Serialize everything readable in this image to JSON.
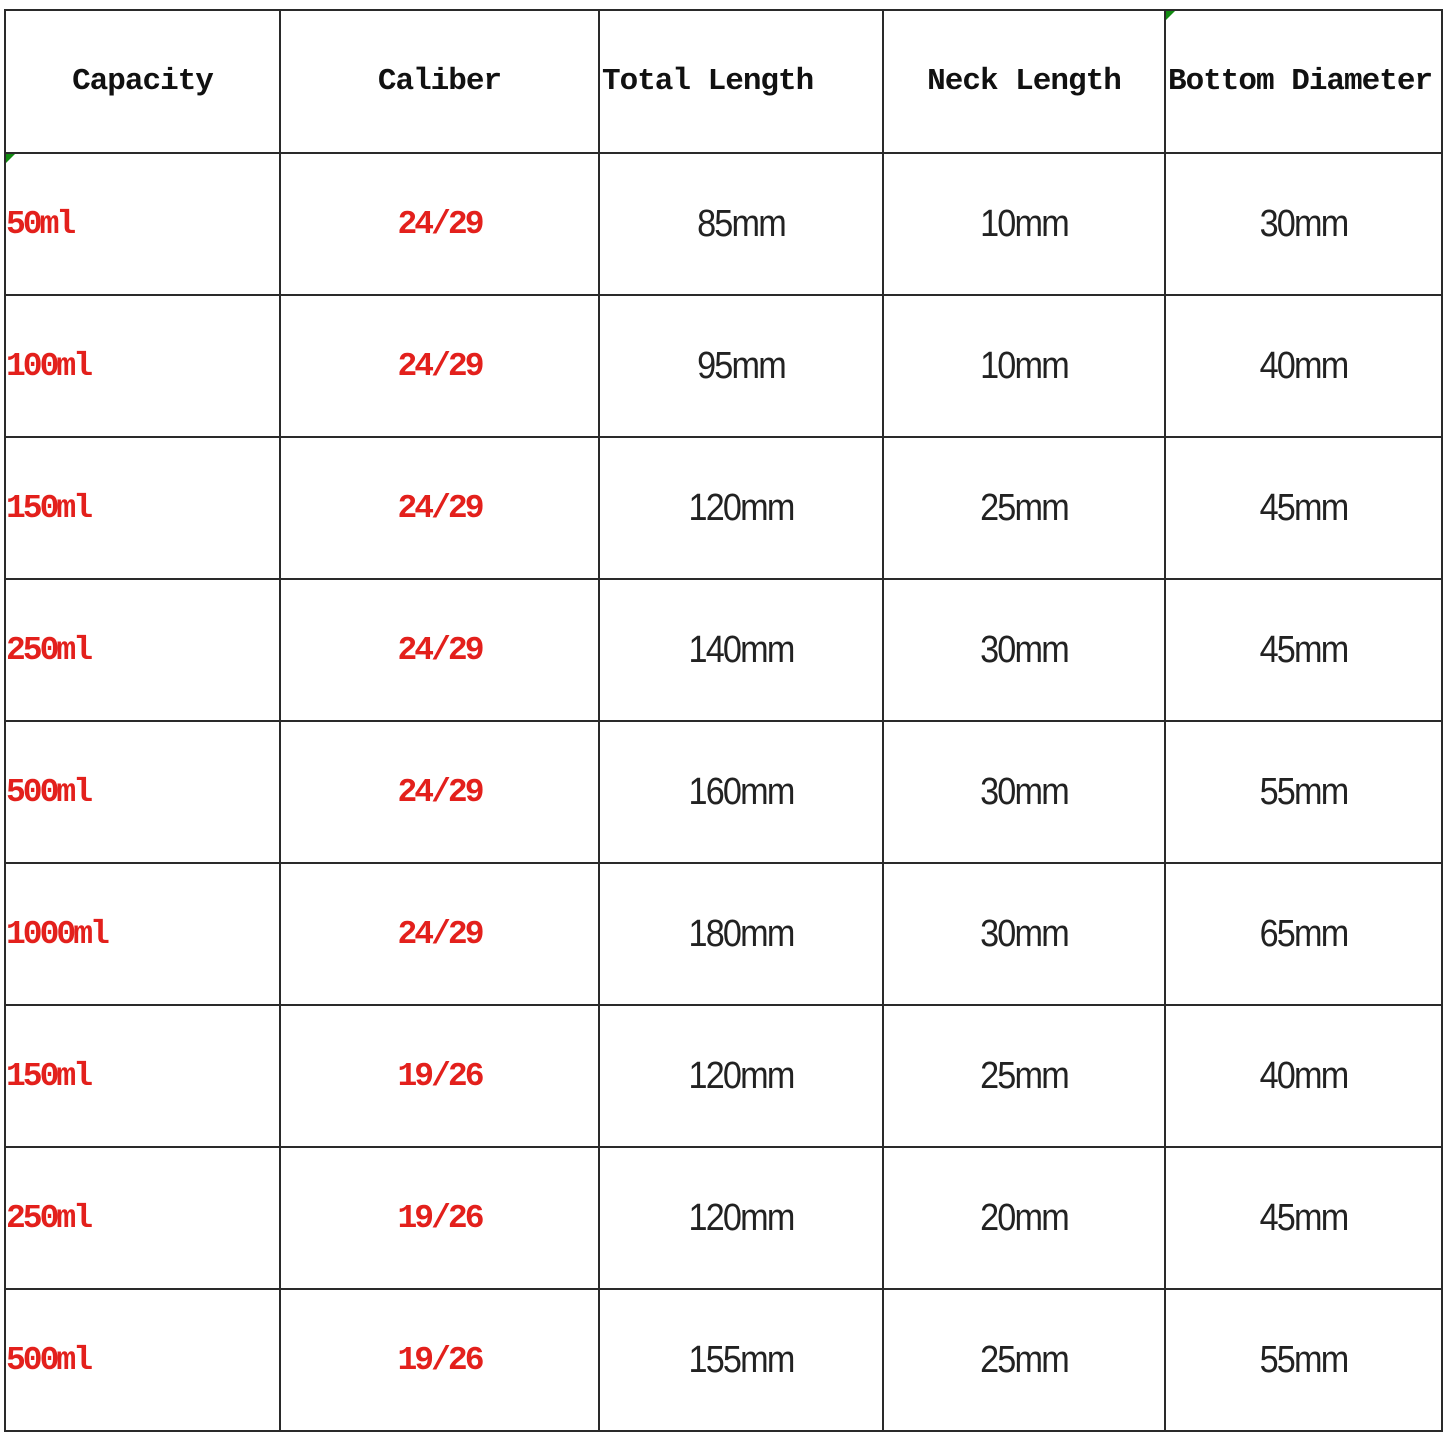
{
  "table": {
    "headers": [
      "Capacity",
      "Caliber",
      "Total Length",
      "Neck Length",
      "Bottom Diameter"
    ],
    "rows": [
      [
        "50ml",
        "24/29",
        "85mm",
        "10mm",
        "30mm"
      ],
      [
        "100ml",
        "24/29",
        "95mm",
        "10mm",
        "40mm"
      ],
      [
        "150ml",
        "24/29",
        "120mm",
        "25mm",
        "45mm"
      ],
      [
        "250ml",
        "24/29",
        "140mm",
        "30mm",
        "45mm"
      ],
      [
        "500ml",
        "24/29",
        "160mm",
        "30mm",
        "55mm"
      ],
      [
        "1000ml",
        "24/29",
        "180mm",
        "30mm",
        "65mm"
      ],
      [
        "150ml",
        "19/26",
        "120mm",
        "25mm",
        "40mm"
      ],
      [
        "250ml",
        "19/26",
        "120mm",
        "20mm",
        "45mm"
      ],
      [
        "500ml",
        "19/26",
        "155mm",
        "25mm",
        "55mm"
      ]
    ]
  },
  "colors": {
    "highlight_text": "#e3201c",
    "grid": "#2a2a2a",
    "comment_marker": "#118a11"
  }
}
